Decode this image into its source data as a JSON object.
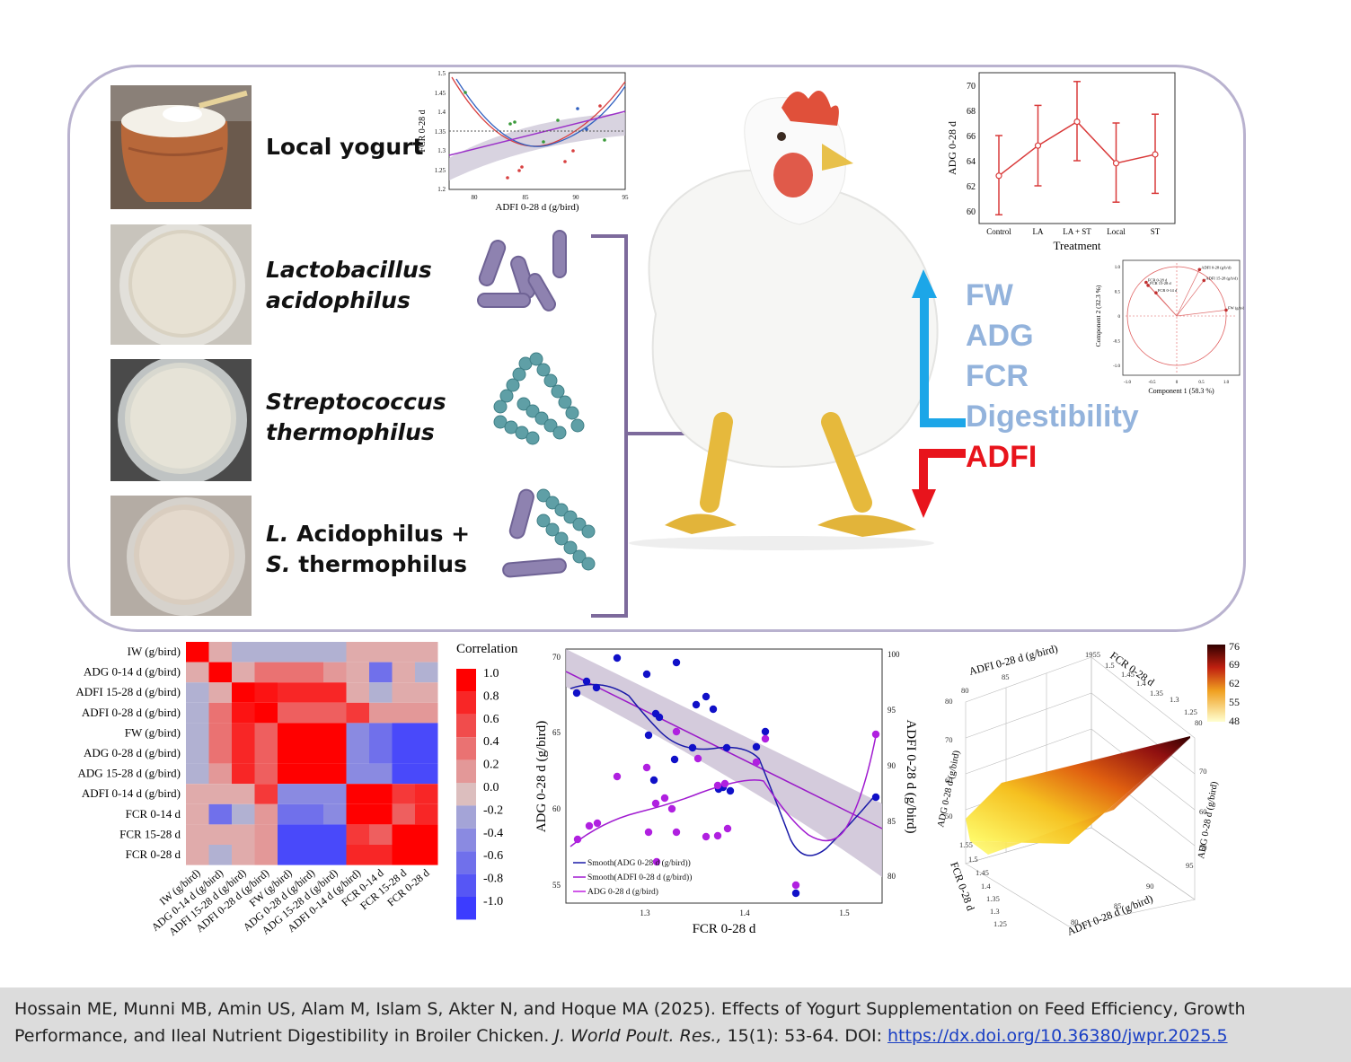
{
  "samples": [
    {
      "label_plain": "Local yogurt",
      "label_italic": "",
      "label_italic2": "",
      "label_tail": "",
      "label_line2_italic": ""
    },
    {
      "label_plain": "",
      "label_italic": "Lactobacillus",
      "label_line2_italic": "acidophilus"
    },
    {
      "label_plain": "",
      "label_italic": "Streptococcus",
      "label_line2_italic": "thermophilus"
    },
    {
      "label_italic": "L.",
      "label_tail": " Acidophilus +",
      "label_line2_italic": "S.",
      "label_line2_tail": " thermophilus"
    }
  ],
  "effects": {
    "up": [
      "FW",
      "ADG",
      "FCR",
      "Digestibility"
    ],
    "down": [
      "ADFI"
    ],
    "up_color": "#1ca6e8",
    "down_color": "#e8141c",
    "up_text_color": "#93b3dc",
    "down_text_color": "#e8141c"
  },
  "scatter_top": {
    "xlabel": "ADFI 0-28 d (g/bird)",
    "ylabel": "FCR 0-28 d",
    "xticks": [
      "80",
      "85",
      "90",
      "95"
    ],
    "yticks": [
      "1.2",
      "1.25",
      "1.3",
      "1.35",
      "1.4",
      "1.45",
      "1.5"
    ]
  },
  "chart_data": [
    {
      "type": "line",
      "xlabel": "Treatment",
      "ylabel": "ADG 0-28 d",
      "categories": [
        "Control",
        "LA",
        "LA + ST",
        "Local",
        "ST"
      ],
      "values": [
        62.8,
        65.2,
        67.1,
        63.8,
        64.5
      ],
      "err_low": [
        59.7,
        62.0,
        64.0,
        60.7,
        61.4
      ],
      "err_high": [
        66.0,
        68.4,
        70.3,
        67.0,
        67.7
      ],
      "ylim": [
        59,
        71
      ],
      "yticks": [
        "60",
        "62",
        "64",
        "66",
        "68",
        "70"
      ],
      "color": "#d93a3a"
    },
    {
      "type": "scatter",
      "title": "",
      "xlabel": "Component 1  (58.3 %)",
      "ylabel": "Component 2  (32.3 %)",
      "xticks": [
        "-1.0",
        "-0.5",
        "0",
        "0.5",
        "1.0"
      ],
      "yticks": [
        "1.0",
        "0.5",
        "0",
        "-0.5",
        "-1.0"
      ],
      "points": [
        {
          "name": "FCR 0-28 d",
          "x": -0.62,
          "y": 0.68
        },
        {
          "name": "FCR 15-28 d",
          "x": -0.58,
          "y": 0.62
        },
        {
          "name": "FCR 0-14 d",
          "x": -0.42,
          "y": 0.47
        },
        {
          "name": "ADFI 0-28 (g/b/d)",
          "x": 0.46,
          "y": 0.94
        },
        {
          "name": "ADFI 15-28 (g/b/d)",
          "x": 0.55,
          "y": 0.72
        },
        {
          "name": "FW (g/b/d)",
          "x": 1.0,
          "y": 0.12
        }
      ]
    },
    {
      "type": "heatmap",
      "title": "Correlation",
      "labels": [
        "IW (g/bird)",
        "ADG 0-14 d (g/bird)",
        "ADFI 15-28 d (g/bird)",
        "ADFI 0-28 d (g/bird)",
        "FW (g/bird)",
        "ADG 0-28 d (g/bird)",
        "ADG 15-28 d (g/bird)",
        "ADFI 0-14 d (g/bird)",
        "FCR 0-14 d",
        "FCR 15-28 d",
        "FCR 0-28 d"
      ],
      "legend": [
        "1.0",
        "0.8",
        "0.6",
        "0.4",
        "0.2",
        "0.0",
        "-0.2",
        "-0.4",
        "-0.6",
        "-0.8",
        "-1.0"
      ],
      "matrix": [
        [
          1,
          0.1,
          -0.1,
          -0.1,
          -0.1,
          -0.1,
          -0.1,
          0.1,
          0.1,
          0.1,
          0.1
        ],
        [
          0.1,
          1,
          0.1,
          0.4,
          0.4,
          0.4,
          0.2,
          0.1,
          -0.6,
          0.1,
          -0.1
        ],
        [
          -0.1,
          0.1,
          1,
          0.9,
          0.8,
          0.8,
          0.8,
          0.1,
          -0.1,
          0.1,
          0.1
        ],
        [
          -0.1,
          0.4,
          0.9,
          1,
          0.5,
          0.5,
          0.5,
          0.7,
          0.2,
          0.2,
          0.2
        ],
        [
          -0.1,
          0.4,
          0.8,
          0.5,
          1,
          1,
          1,
          -0.4,
          -0.6,
          -0.9,
          -0.9
        ],
        [
          -0.1,
          0.4,
          0.8,
          0.5,
          1,
          1,
          1,
          -0.4,
          -0.6,
          -0.9,
          -0.9
        ],
        [
          -0.1,
          0.2,
          0.8,
          0.5,
          1,
          1,
          1,
          -0.4,
          -0.4,
          -0.9,
          -0.9
        ],
        [
          0.1,
          0.1,
          0.1,
          0.7,
          -0.4,
          -0.4,
          -0.4,
          1,
          1,
          0.7,
          0.8
        ],
        [
          0.1,
          -0.6,
          -0.1,
          0.2,
          -0.6,
          -0.6,
          -0.4,
          1,
          1,
          0.5,
          0.8
        ],
        [
          0.1,
          0.1,
          0.1,
          0.2,
          -0.9,
          -0.9,
          -0.9,
          0.7,
          0.5,
          1,
          1
        ],
        [
          0.1,
          -0.1,
          0.1,
          0.2,
          -0.9,
          -0.9,
          -0.9,
          0.8,
          0.8,
          1,
          1
        ]
      ]
    },
    {
      "type": "scatter",
      "xlabel": "FCR 0-28 d",
      "ylabel": "ADG 0-28 d (g/bird)",
      "ylabel2": "ADFI 0-28 d (g/bird)",
      "xticks": [
        "1.3",
        "1.4",
        "1.5"
      ],
      "yticks": [
        "55",
        "60",
        "65",
        "70"
      ],
      "yticks2": [
        "80",
        "85",
        "90",
        "95",
        "100"
      ],
      "legend": [
        "Smooth(ADG 0-28 d (g/bird))",
        "Smooth(ADFI 0-28 d (g/bird))",
        "ADG 0-28 d (g/bird)"
      ]
    },
    {
      "type": "surface",
      "xlabel": "ADFI 0-28 d (g/bird)",
      "ylabel": "FCR 0-28 d",
      "zlabel": "ADG 0-28 d (g/bird)",
      "colorbar": [
        "76",
        "69",
        "62",
        "55",
        "48"
      ]
    }
  ],
  "caption": {
    "authors": "Hossain ME, Munni MB, Amin US, Alam M, Islam S, Akter N, and Hoque MA (2025). Effects of Yogurt Supplementation on Feed Efficiency, Growth Performance, and Ileal Nutrient Digestibility in Broiler Chicken. ",
    "journal": "J. World Poult. Res.,",
    "volume": " 15(1): 53-64. DOI: ",
    "doi": "https://dx.doi.org/10.36380/jwpr.2025.5"
  }
}
